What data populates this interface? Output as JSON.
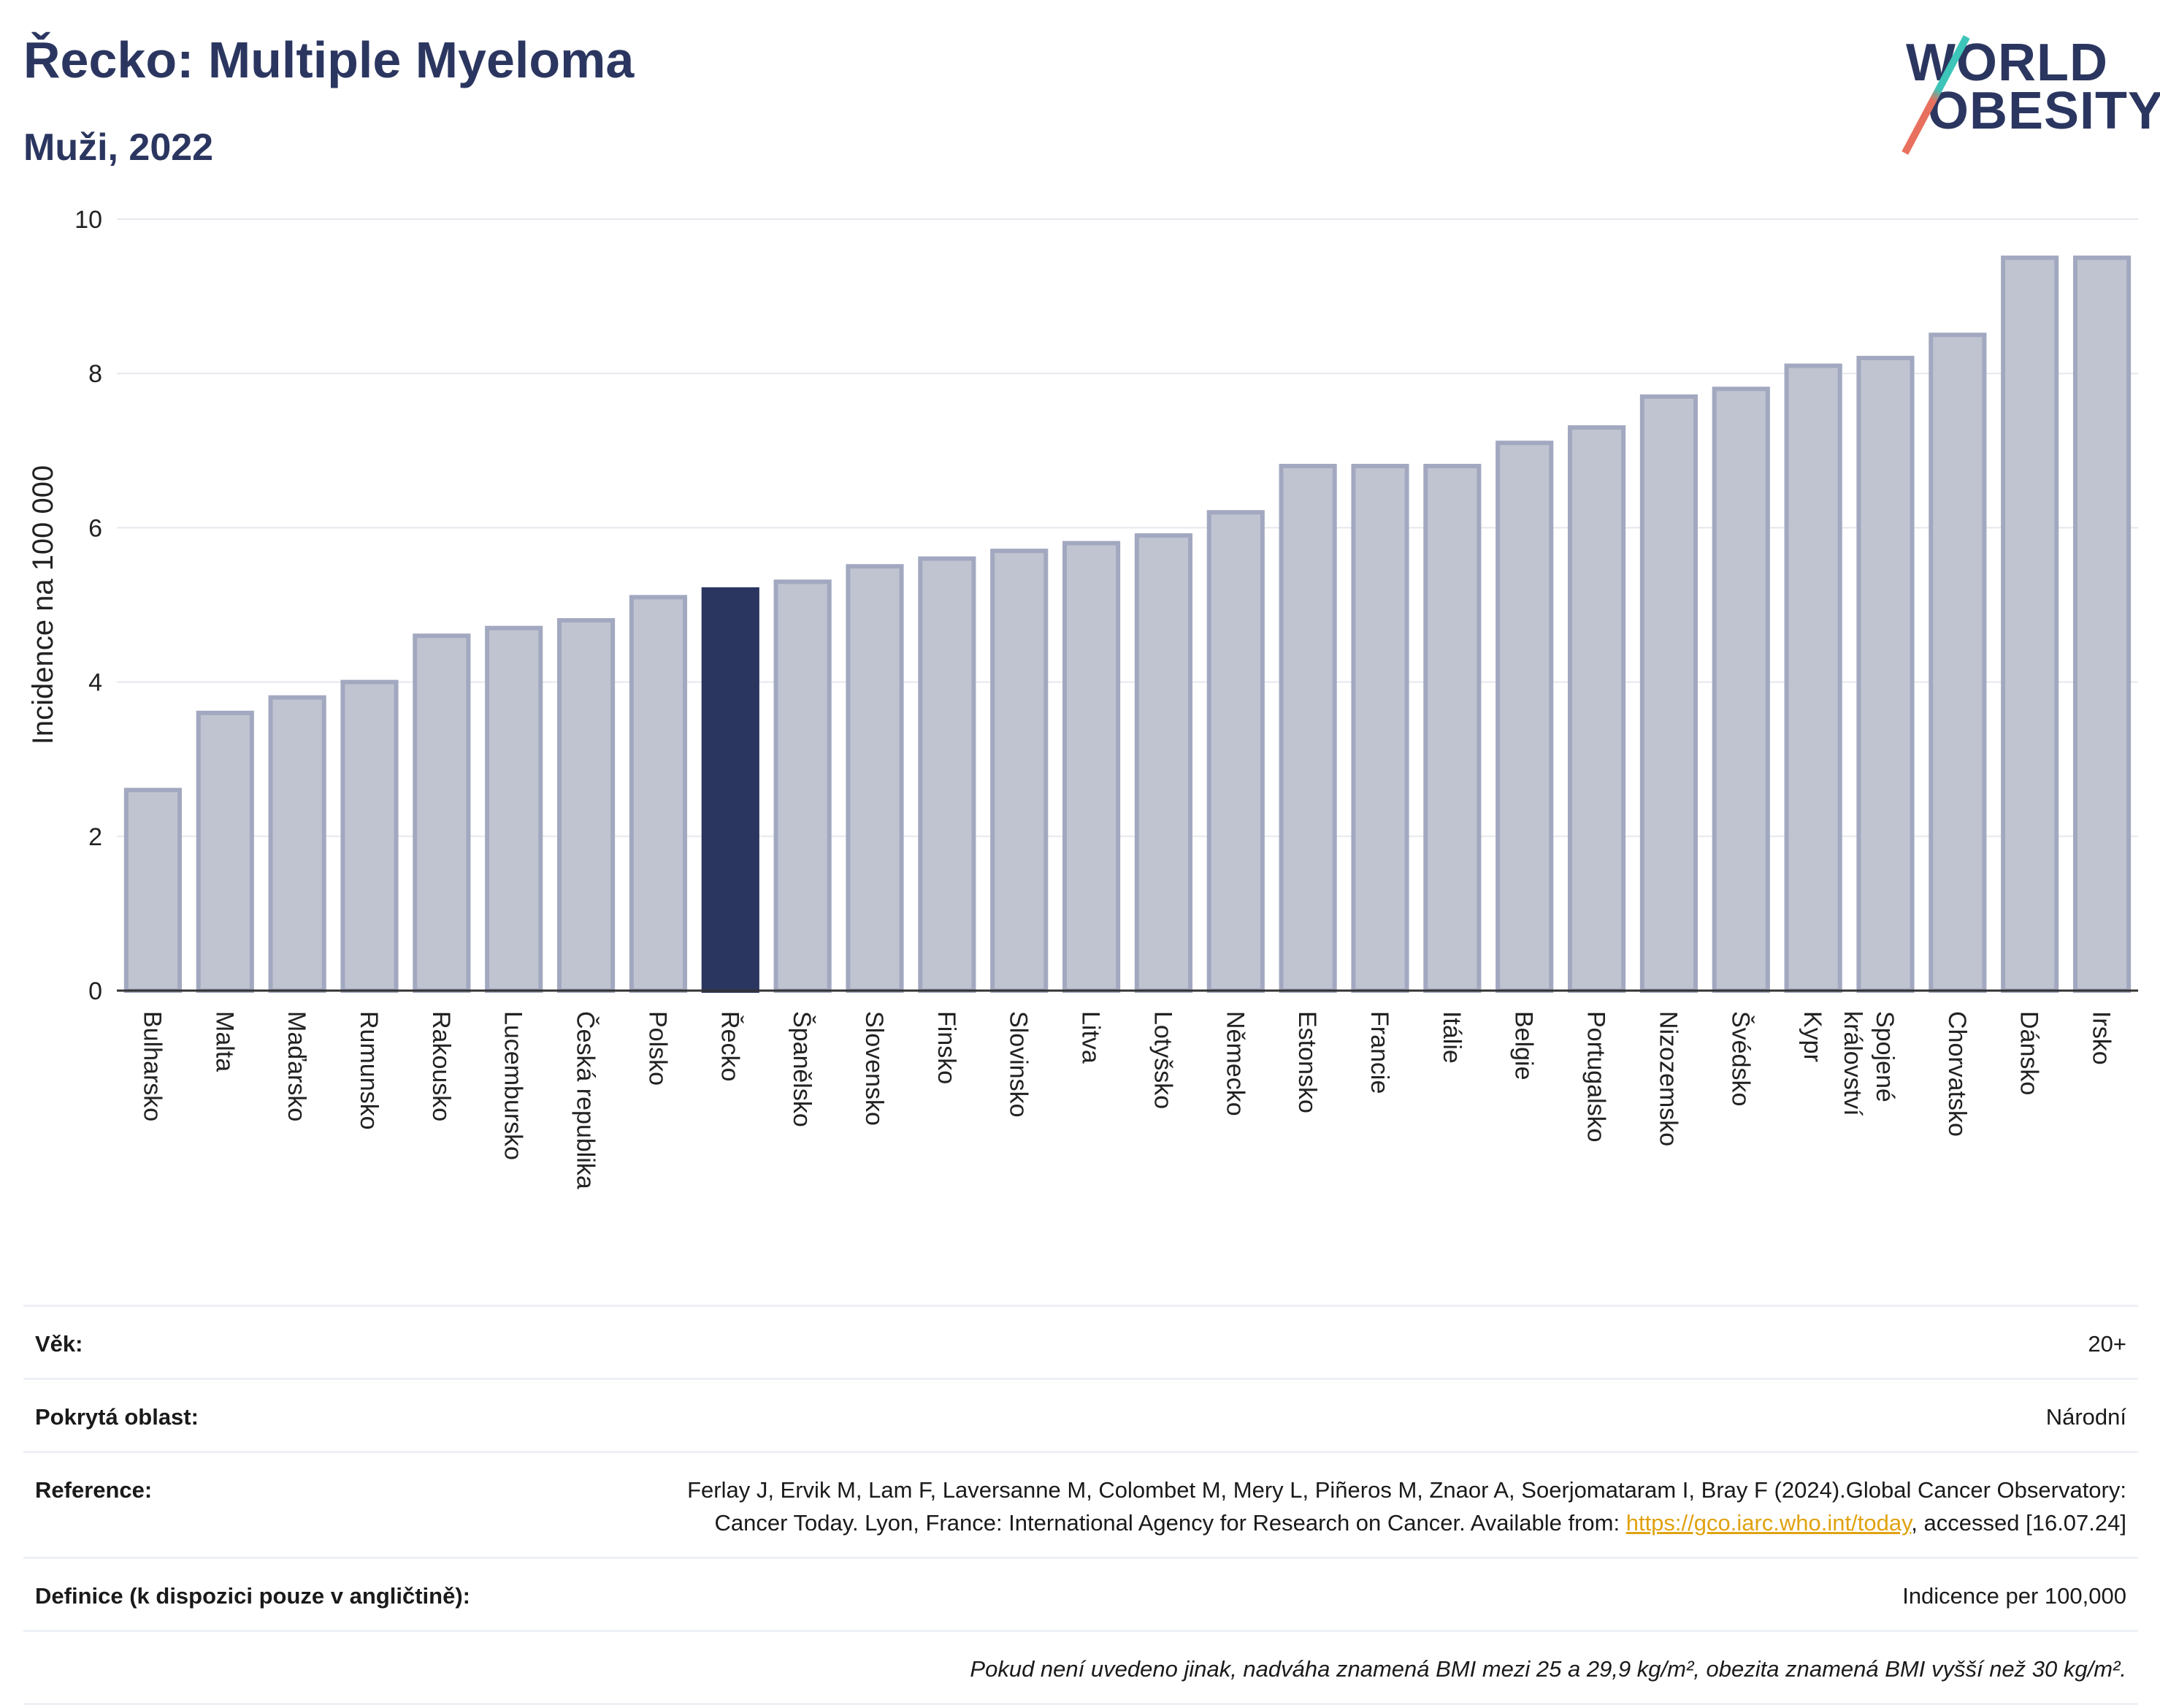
{
  "header": {
    "title": "Řecko: Multiple Myeloma",
    "subtitle": "Muži, 2022"
  },
  "logo": {
    "line1": "WORLD",
    "line2": "OBESITY",
    "slash_color_top": "#3cc5b8",
    "slash_color_bottom": "#e8705f"
  },
  "colors": {
    "highlight": "#2b3660",
    "bar": "#c0c4d1",
    "bar_border": "#a2a8bf",
    "grid": "#e6e8ee"
  },
  "chart_data": {
    "type": "bar",
    "ylabel": "Incidence na 100 000",
    "ylim": [
      0,
      10
    ],
    "yticks": [
      0,
      2,
      4,
      6,
      8,
      10
    ],
    "grid": true,
    "highlight_category": "Řecko",
    "categories": [
      "Bulharsko",
      "Malta",
      "Maďarsko",
      "Rumunsko",
      "Rakousko",
      "Lucembursko",
      "Česká republika",
      "Polsko",
      "Řecko",
      "Španělsko",
      "Slovensko",
      "Finsko",
      "Slovinsko",
      "Litva",
      "Lotyšsko",
      "Německo",
      "Estonsko",
      "Francie",
      "Itálie",
      "Belgie",
      "Portugalsko",
      "Nizozemsko",
      "Švédsko",
      "Kypr",
      "Spojené království",
      "Chorvatsko",
      "Dánsko",
      "Irsko"
    ],
    "values": [
      2.6,
      3.6,
      3.8,
      4.0,
      4.6,
      4.7,
      4.8,
      5.1,
      5.2,
      5.3,
      5.5,
      5.6,
      5.7,
      5.8,
      5.9,
      6.2,
      6.8,
      6.8,
      6.8,
      7.1,
      7.3,
      7.7,
      7.8,
      8.1,
      8.2,
      8.5,
      9.5,
      9.5
    ]
  },
  "info": {
    "age_label": "Věk:",
    "age_value": "20+",
    "coverage_label": "Pokrytá oblast:",
    "coverage_value": "Národní",
    "reference_label": "Reference:",
    "reference_text_1": "Ferlay J, Ervik M, Lam F, Laversanne M, Colombet M, Mery L, Piñeros M, Znaor A, Soerjomataram I, Bray F (2024).Global Cancer Observatory: Cancer Today. Lyon, France: International Agency for Research on Cancer. Available from: ",
    "reference_link": "https://gco.iarc.who.int/today",
    "reference_text_2": ", accessed [16.07.24]",
    "definition_label": "Definice (k dispozici pouze v angličtině):",
    "definition_value": "Indicence per 100,000",
    "note": "Pokud není uvedeno jinak, nadváha znamená BMI mezi 25 a 29,9 kg/m², obezita znamená BMI vyšší než 30 kg/m²."
  }
}
